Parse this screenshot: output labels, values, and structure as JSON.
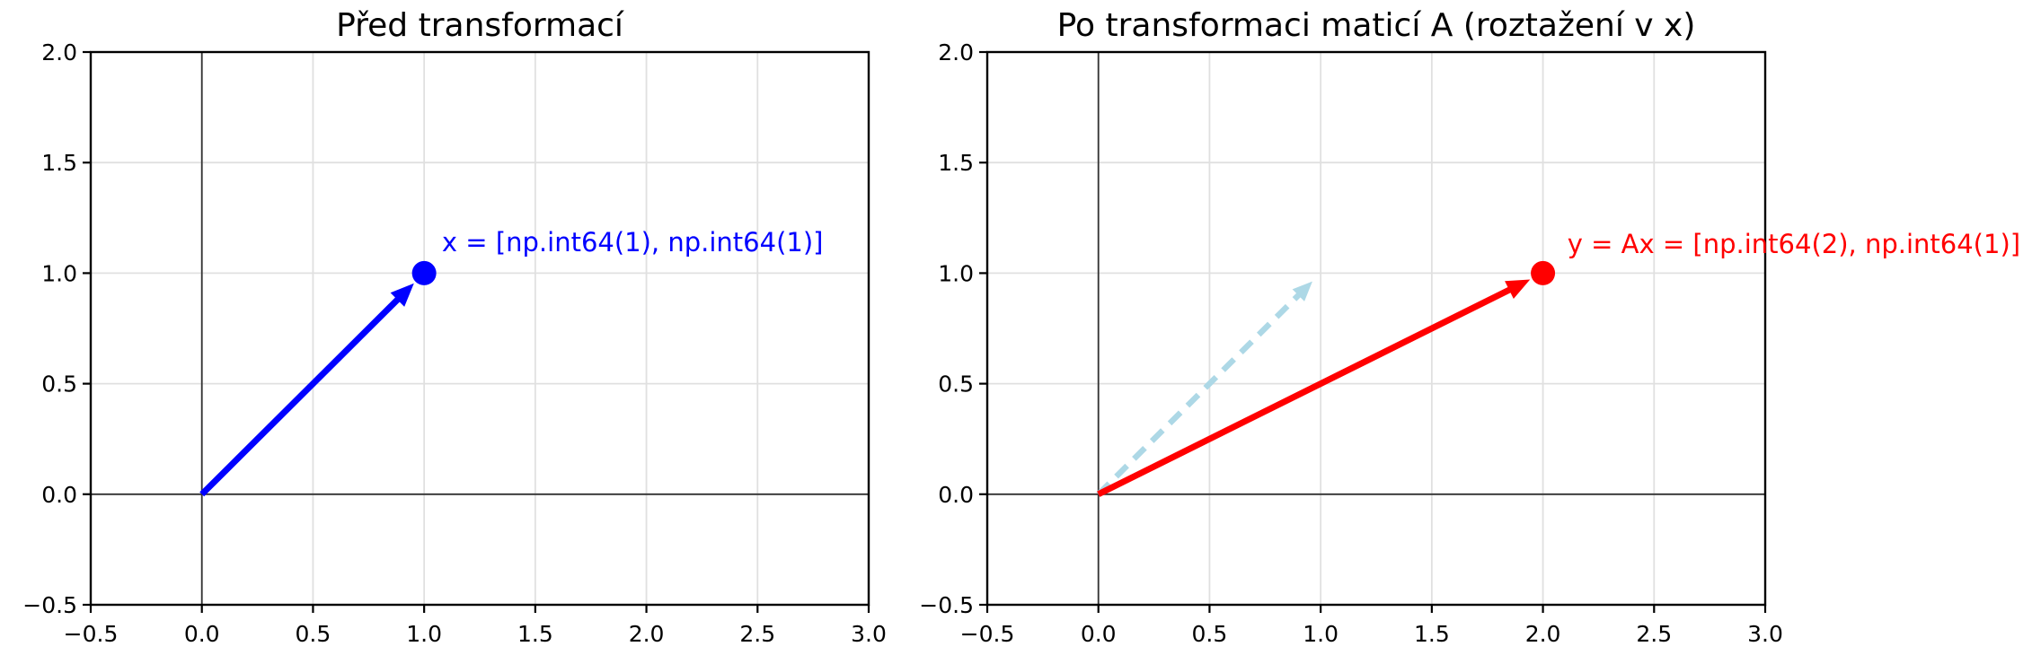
{
  "figure": {
    "background": "#ffffff",
    "text_color": "#000000",
    "spine_color": "#000000",
    "zero_line_color": "#333333"
  },
  "chart_data": [
    {
      "type": "vector-plot",
      "title": "Před transformací",
      "xlim": [
        -0.5,
        3.0
      ],
      "ylim": [
        -0.5,
        2.0
      ],
      "xticks": [
        -0.5,
        0.0,
        0.5,
        1.0,
        1.5,
        2.0,
        2.5,
        3.0
      ],
      "yticks": [
        -0.5,
        0.0,
        0.5,
        1.0,
        1.5,
        2.0
      ],
      "xtick_labels": [
        "−0.5",
        "0.0",
        "0.5",
        "1.0",
        "1.5",
        "2.0",
        "2.5",
        "3.0"
      ],
      "ytick_labels": [
        "−0.5",
        "0.0",
        "0.5",
        "1.0",
        "1.5",
        "2.0"
      ],
      "grid": true,
      "grid_color": "#e0e0e0",
      "zero_lines": true,
      "vectors": [
        {
          "name": "x",
          "from": [
            0,
            0
          ],
          "to": [
            1,
            1
          ],
          "color": "#0000ff",
          "line_style": "solid",
          "end_marker": true
        }
      ],
      "annotations": [
        {
          "text": "x = [np.int64(1), np.int64(1)]",
          "color": "#0000ff",
          "position": [
            1.08,
            1.14
          ]
        }
      ]
    },
    {
      "type": "vector-plot",
      "title": "Po transformaci maticí A (roztažení v x)",
      "xlim": [
        -0.5,
        3.0
      ],
      "ylim": [
        -0.5,
        2.0
      ],
      "xticks": [
        -0.5,
        0.0,
        0.5,
        1.0,
        1.5,
        2.0,
        2.5,
        3.0
      ],
      "yticks": [
        -0.5,
        0.0,
        0.5,
        1.0,
        1.5,
        2.0
      ],
      "xtick_labels": [
        "−0.5",
        "0.0",
        "0.5",
        "1.0",
        "1.5",
        "2.0",
        "2.5",
        "3.0"
      ],
      "ytick_labels": [
        "−0.5",
        "0.0",
        "0.5",
        "1.0",
        "1.5",
        "2.0"
      ],
      "grid": true,
      "grid_color": "#e0e0e0",
      "zero_lines": true,
      "vectors": [
        {
          "name": "x-original",
          "from": [
            0,
            0
          ],
          "to": [
            1,
            1
          ],
          "color": "#add8e6",
          "line_style": "dashed",
          "end_marker": false
        },
        {
          "name": "y",
          "from": [
            0,
            0
          ],
          "to": [
            2,
            1
          ],
          "color": "#ff0000",
          "line_style": "solid",
          "end_marker": true
        }
      ],
      "annotations": [
        {
          "text": "y = Ax = [np.int64(2), np.int64(1)]",
          "color": "#ff0000",
          "position": [
            2.11,
            1.13
          ]
        }
      ]
    }
  ]
}
